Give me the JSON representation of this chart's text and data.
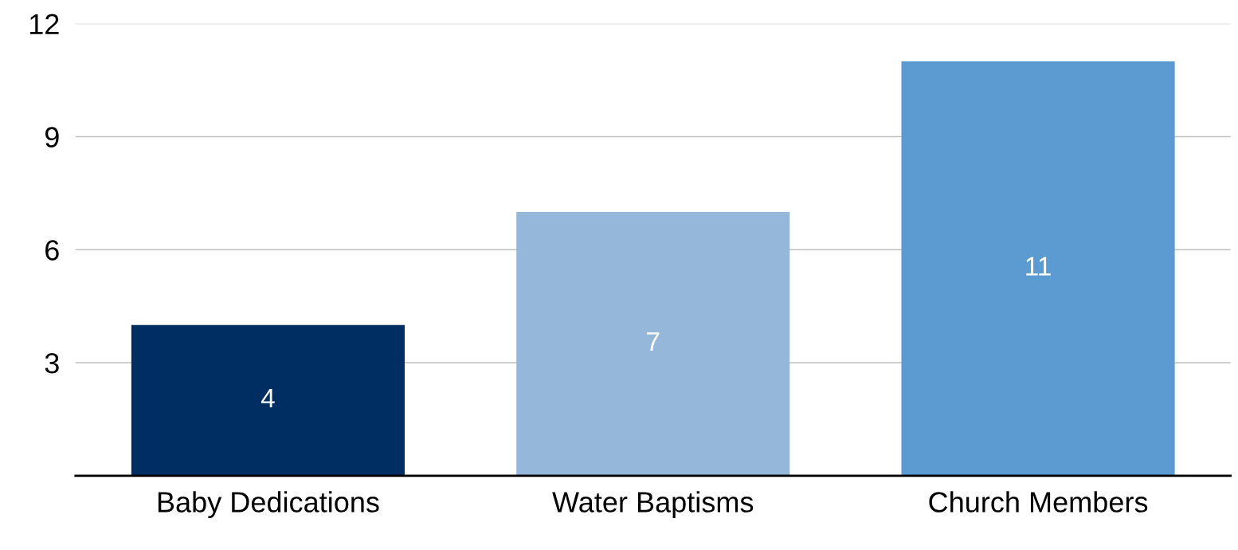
{
  "chart_data": {
    "type": "bar",
    "categories": [
      "Baby Dedications",
      "Water Baptisms",
      "Church Members"
    ],
    "values": [
      4,
      7,
      11
    ],
    "colors": [
      "#002d62",
      "#95b8da",
      "#5b9bd1"
    ],
    "ylim": [
      0,
      12
    ],
    "yticks": [
      3,
      6,
      9,
      12
    ],
    "grid": "y",
    "data_labels": true
  }
}
